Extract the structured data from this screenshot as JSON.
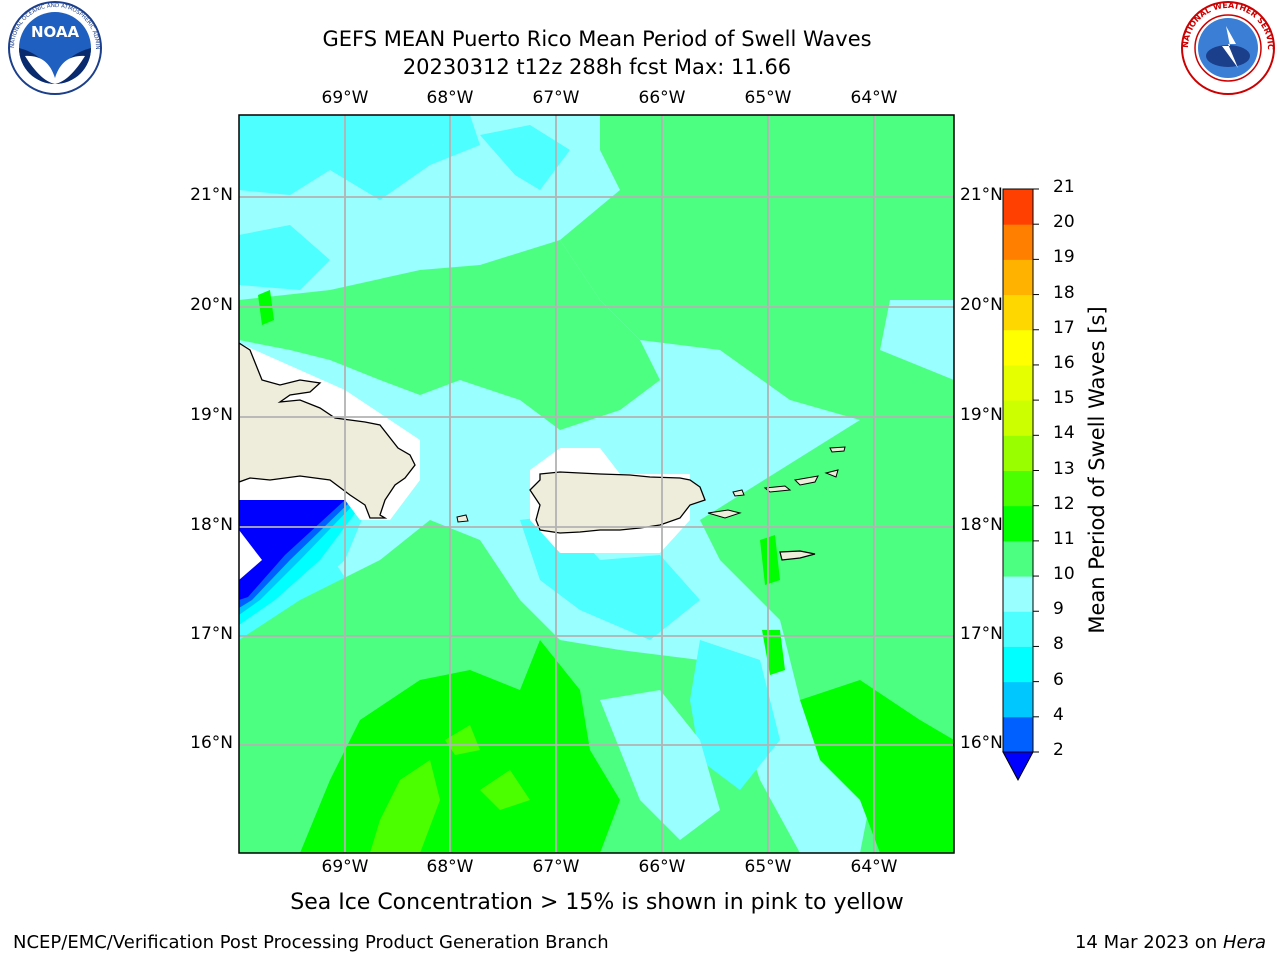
{
  "header": {
    "title_line1": "GEFS MEAN Puerto Rico Mean Period of Swell Waves",
    "title_line2": "20230312 t12z 288h fcst   Max: 11.66"
  },
  "logos": {
    "left": {
      "name": "NOAA",
      "ring_text": "NATIONAL OCEANIC AND ATMOSPHERIC ADMINISTRATION · U.S. DEPARTMENT OF COMMERCE"
    },
    "right": {
      "name": "NATIONAL WEATHER SERVICE"
    }
  },
  "map": {
    "lon_labels": [
      "69°W",
      "68°W",
      "67°W",
      "66°W",
      "65°W",
      "64°W"
    ],
    "lat_labels": [
      "21°N",
      "20°N",
      "19°N",
      "18°N",
      "17°N",
      "16°N"
    ],
    "grid": true,
    "colors": {
      "land": "#eeecdb",
      "coast": "#000000",
      "grid": "#b3b3b3",
      "no_data": "#ffffff"
    }
  },
  "colorbar": {
    "title": "Mean Period of Swell Waves [s]",
    "tick_labels": [
      "2",
      "4",
      "6",
      "8",
      "9",
      "10",
      "11",
      "12",
      "13",
      "14",
      "15",
      "16",
      "17",
      "18",
      "19",
      "20",
      "21"
    ],
    "levels": [
      2,
      4,
      6,
      8,
      9,
      10,
      11,
      12,
      13,
      14,
      15,
      16,
      17,
      18,
      19,
      20,
      21
    ],
    "colors": [
      "#0060ff",
      "#00c8ff",
      "#00ffff",
      "#4dffff",
      "#99ffff",
      "#4dff80",
      "#00ff00",
      "#4cff00",
      "#99ff00",
      "#ccff00",
      "#e6ff00",
      "#ffff00",
      "#ffd700",
      "#ffb200",
      "#ff8000",
      "#ff4000",
      "#ff0000"
    ],
    "under_color": "#0000ff",
    "extend": "min"
  },
  "notes": {
    "sea_ice": "Sea Ice Concentration > 15% is shown in pink to yellow"
  },
  "footer": {
    "left": "NCEP/EMC/Verification Post Processing Product Generation Branch",
    "date": "14 Mar 2023 on ",
    "host": "Hera"
  }
}
